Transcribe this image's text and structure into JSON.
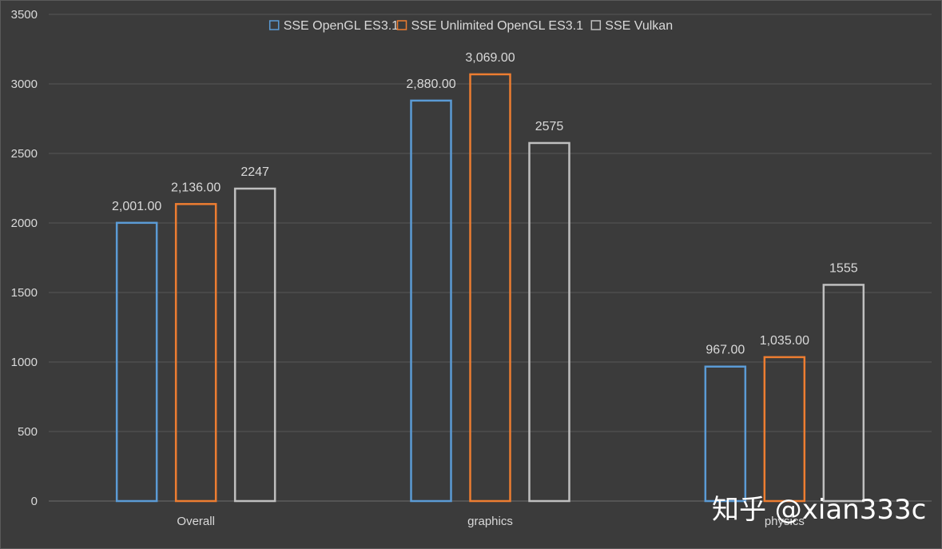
{
  "chart_data": {
    "type": "bar",
    "categories": [
      "Overall",
      "graphics",
      "physics"
    ],
    "series": [
      {
        "name": "SSE OpenGL ES3.1",
        "color": "#5b9bd5",
        "values": [
          2001,
          2880,
          967
        ],
        "labels": [
          "2,001.00",
          "2,880.00",
          "967.00"
        ]
      },
      {
        "name": "SSE Unlimited OpenGL ES3.1",
        "color": "#ed7d31",
        "values": [
          2136,
          3069,
          1035
        ],
        "labels": [
          "2,136.00",
          "3,069.00",
          "1,035.00"
        ]
      },
      {
        "name": "SSE Vulkan",
        "color": "#bfbfbf",
        "values": [
          2247,
          2575,
          1555
        ],
        "labels": [
          "2247",
          "2575",
          "1555"
        ]
      }
    ],
    "yticks": [
      0,
      500,
      1000,
      1500,
      2000,
      2500,
      3000,
      3500
    ],
    "ylim": [
      0,
      3500
    ],
    "grid": true,
    "legend_position": "top",
    "title": "",
    "xlabel": "",
    "ylabel": ""
  },
  "watermark": "知乎 @xian333c"
}
